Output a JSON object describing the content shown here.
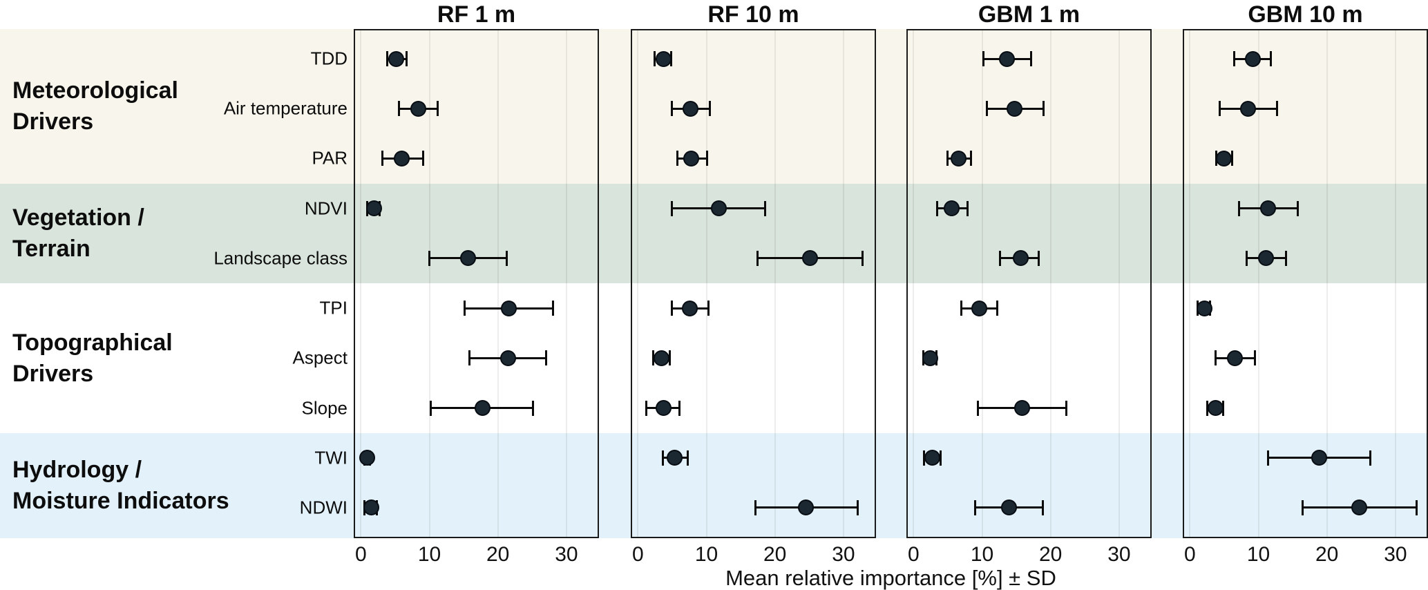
{
  "figure": {
    "caption": "Mean relative importance [%] ± SD",
    "panel_titles": [
      "RF 1 m",
      "RF 10 m",
      "GBM 1 m",
      "GBM 10 m"
    ]
  },
  "groups": [
    {
      "label_lines": [
        "Meteorological",
        "Drivers"
      ],
      "band_color": "#f8f6ec",
      "rows": [
        "TDD",
        "Air temperature",
        "PAR"
      ]
    },
    {
      "label_lines": [
        "Vegetation /",
        "Terrain"
      ],
      "band_color": "#d9e4dc",
      "rows": [
        "NDVI",
        "Landscape class"
      ]
    },
    {
      "label_lines": [
        "Topographical",
        "Drivers"
      ],
      "band_color": "#ffffff",
      "rows": [
        "TPI",
        "Aspect",
        "Slope"
      ]
    },
    {
      "label_lines": [
        "Hydrology /",
        "Moisture Indicators"
      ],
      "band_color": "#e2f1fa",
      "rows": [
        "TWI",
        "NDWI"
      ]
    }
  ],
  "chart_data": {
    "type": "scatter",
    "subtype": "dot-plot-with-error-bars",
    "title": "",
    "xlabel": "Mean relative importance [%] ± SD",
    "ylabel": "",
    "categories": [
      "TDD",
      "Air temperature",
      "PAR",
      "NDVI",
      "Landscape class",
      "TPI",
      "Aspect",
      "Slope",
      "TWI",
      "NDWI"
    ],
    "x_axis": {
      "ticks": [
        0,
        10,
        20,
        30
      ],
      "range": [
        -1,
        34.8
      ],
      "grid": true
    },
    "series": [
      {
        "name": "RF 1 m",
        "values": [
          {
            "mean": 5.2,
            "lo": 3.8,
            "hi": 6.7
          },
          {
            "mean": 8.4,
            "lo": 5.5,
            "hi": 11.3
          },
          {
            "mean": 6.0,
            "lo": 3.1,
            "hi": 9.1
          },
          {
            "mean": 1.9,
            "lo": 0.9,
            "hi": 2.8
          },
          {
            "mean": 15.6,
            "lo": 9.9,
            "hi": 21.3
          },
          {
            "mean": 21.6,
            "lo": 15.1,
            "hi": 28.1
          },
          {
            "mean": 21.5,
            "lo": 15.8,
            "hi": 27.1
          },
          {
            "mean": 17.8,
            "lo": 10.2,
            "hi": 25.2
          },
          {
            "mean": 0.9,
            "lo": 0.5,
            "hi": 1.4
          },
          {
            "mean": 1.5,
            "lo": 0.5,
            "hi": 2.4
          }
        ]
      },
      {
        "name": "RF 10 m",
        "values": [
          {
            "mean": 3.7,
            "lo": 2.4,
            "hi": 4.9
          },
          {
            "mean": 7.7,
            "lo": 4.9,
            "hi": 10.6
          },
          {
            "mean": 7.8,
            "lo": 5.7,
            "hi": 10.2
          },
          {
            "mean": 11.8,
            "lo": 4.9,
            "hi": 18.6
          },
          {
            "mean": 25.1,
            "lo": 17.4,
            "hi": 32.8
          },
          {
            "mean": 7.6,
            "lo": 4.9,
            "hi": 10.4
          },
          {
            "mean": 3.4,
            "lo": 2.2,
            "hi": 4.7
          },
          {
            "mean": 3.8,
            "lo": 1.2,
            "hi": 6.1
          },
          {
            "mean": 5.4,
            "lo": 3.6,
            "hi": 7.3
          },
          {
            "mean": 24.5,
            "lo": 17.1,
            "hi": 32.1
          }
        ]
      },
      {
        "name": "GBM 1 m",
        "values": [
          {
            "mean": 13.6,
            "lo": 10.2,
            "hi": 17.2
          },
          {
            "mean": 14.7,
            "lo": 10.7,
            "hi": 19.0
          },
          {
            "mean": 6.6,
            "lo": 4.9,
            "hi": 8.4
          },
          {
            "mean": 5.6,
            "lo": 3.4,
            "hi": 7.9
          },
          {
            "mean": 15.6,
            "lo": 12.6,
            "hi": 18.3
          },
          {
            "mean": 9.6,
            "lo": 6.9,
            "hi": 12.3
          },
          {
            "mean": 2.4,
            "lo": 1.4,
            "hi": 3.4
          },
          {
            "mean": 15.8,
            "lo": 9.3,
            "hi": 22.3
          },
          {
            "mean": 2.7,
            "lo": 1.5,
            "hi": 4.0
          },
          {
            "mean": 13.9,
            "lo": 8.9,
            "hi": 18.9
          }
        ]
      },
      {
        "name": "GBM 10 m",
        "values": [
          {
            "mean": 9.2,
            "lo": 6.4,
            "hi": 11.9
          },
          {
            "mean": 8.5,
            "lo": 4.3,
            "hi": 12.8
          },
          {
            "mean": 5.0,
            "lo": 3.8,
            "hi": 6.2
          },
          {
            "mean": 11.4,
            "lo": 7.1,
            "hi": 15.8
          },
          {
            "mean": 11.1,
            "lo": 8.2,
            "hi": 14.1
          },
          {
            "mean": 2.1,
            "lo": 1.1,
            "hi": 3.0
          },
          {
            "mean": 6.6,
            "lo": 3.7,
            "hi": 9.5
          },
          {
            "mean": 3.7,
            "lo": 2.5,
            "hi": 4.9
          },
          {
            "mean": 18.9,
            "lo": 11.4,
            "hi": 26.4
          },
          {
            "mean": 24.7,
            "lo": 16.4,
            "hi": 33.1
          }
        ]
      }
    ],
    "legend": "none"
  },
  "style": {
    "dot_color": "#1b2731",
    "dot_border_color": "#070d12",
    "errorbar_color": "#0a0a0a",
    "panel_border_color": "#1a1a1a",
    "grid_color": "rgba(0,0,0,0.07)"
  }
}
